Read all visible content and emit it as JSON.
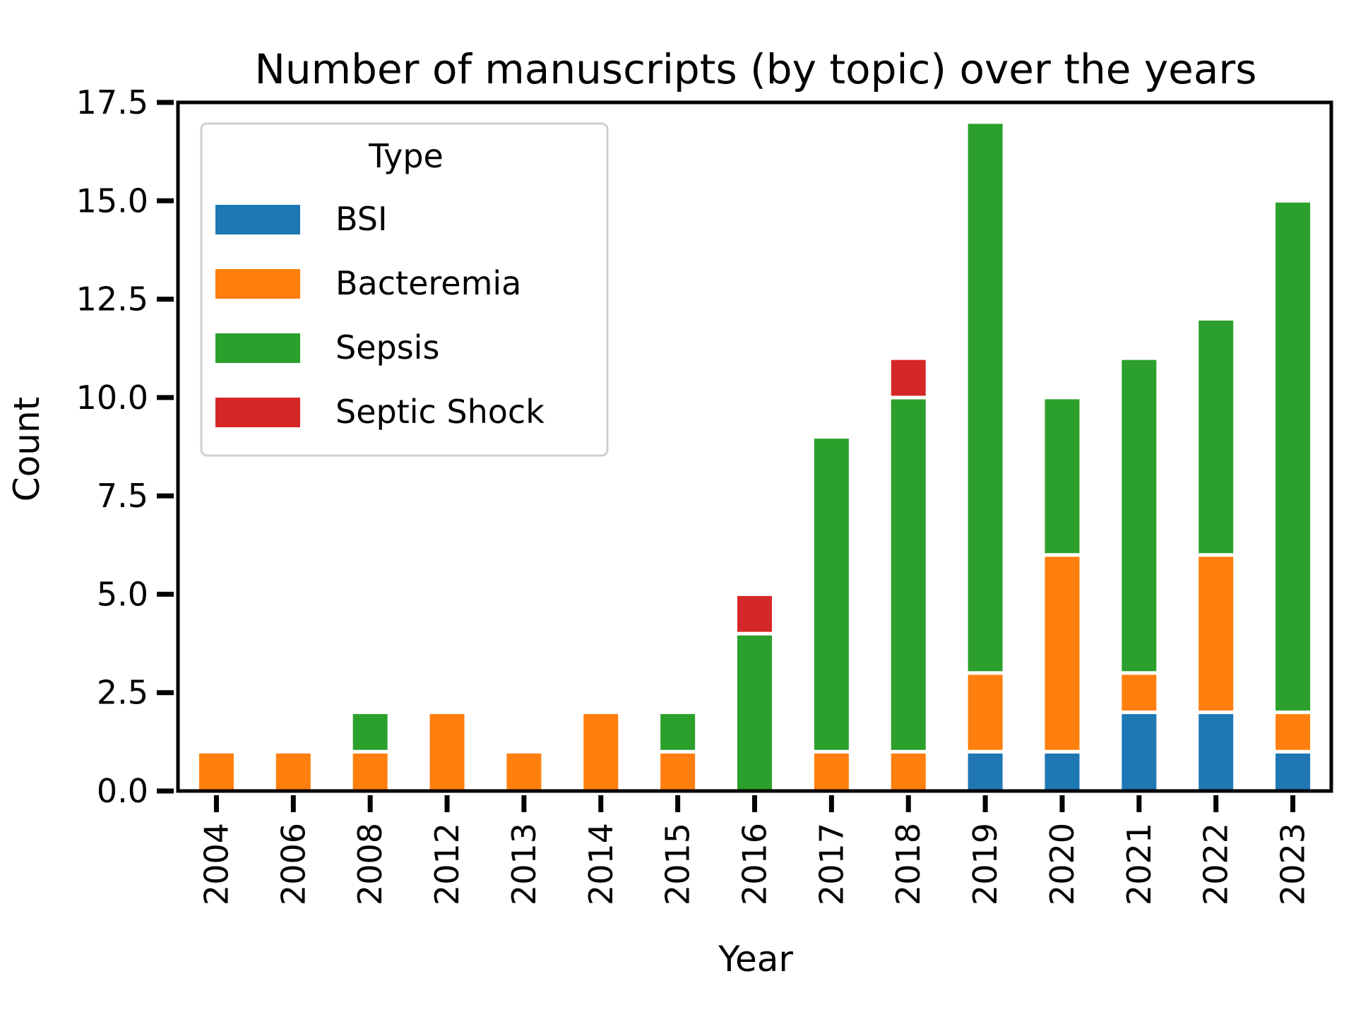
{
  "chart_data": {
    "type": "bar",
    "stacked": true,
    "title": "Number of manuscripts (by topic) over the years",
    "xlabel": "Year",
    "ylabel": "Count",
    "ylim": [
      0,
      17.5
    ],
    "yticks": [
      "0.0",
      "2.5",
      "5.0",
      "7.5",
      "10.0",
      "12.5",
      "15.0",
      "17.5"
    ],
    "categories": [
      "2004",
      "2006",
      "2008",
      "2012",
      "2013",
      "2014",
      "2015",
      "2016",
      "2017",
      "2018",
      "2019",
      "2020",
      "2021",
      "2022",
      "2023"
    ],
    "series": [
      {
        "name": "BSI",
        "color": "#1f77b4",
        "values": [
          0,
          0,
          0,
          0,
          0,
          0,
          0,
          0,
          0,
          0,
          1,
          1,
          2,
          2,
          1
        ]
      },
      {
        "name": "Bacteremia",
        "color": "#ff7f0e",
        "values": [
          1,
          1,
          1,
          2,
          1,
          2,
          1,
          0,
          1,
          1,
          2,
          5,
          1,
          4,
          1
        ]
      },
      {
        "name": "Sepsis",
        "color": "#2ca02c",
        "values": [
          0,
          0,
          1,
          0,
          0,
          0,
          1,
          4,
          8,
          9,
          14,
          4,
          8,
          6,
          13
        ]
      },
      {
        "name": "Septic Shock",
        "color": "#d62728",
        "values": [
          0,
          0,
          0,
          0,
          0,
          0,
          0,
          1,
          0,
          1,
          0,
          0,
          0,
          0,
          0
        ]
      }
    ],
    "legend": {
      "title": "Type",
      "position": "top-left"
    },
    "grid": false
  }
}
